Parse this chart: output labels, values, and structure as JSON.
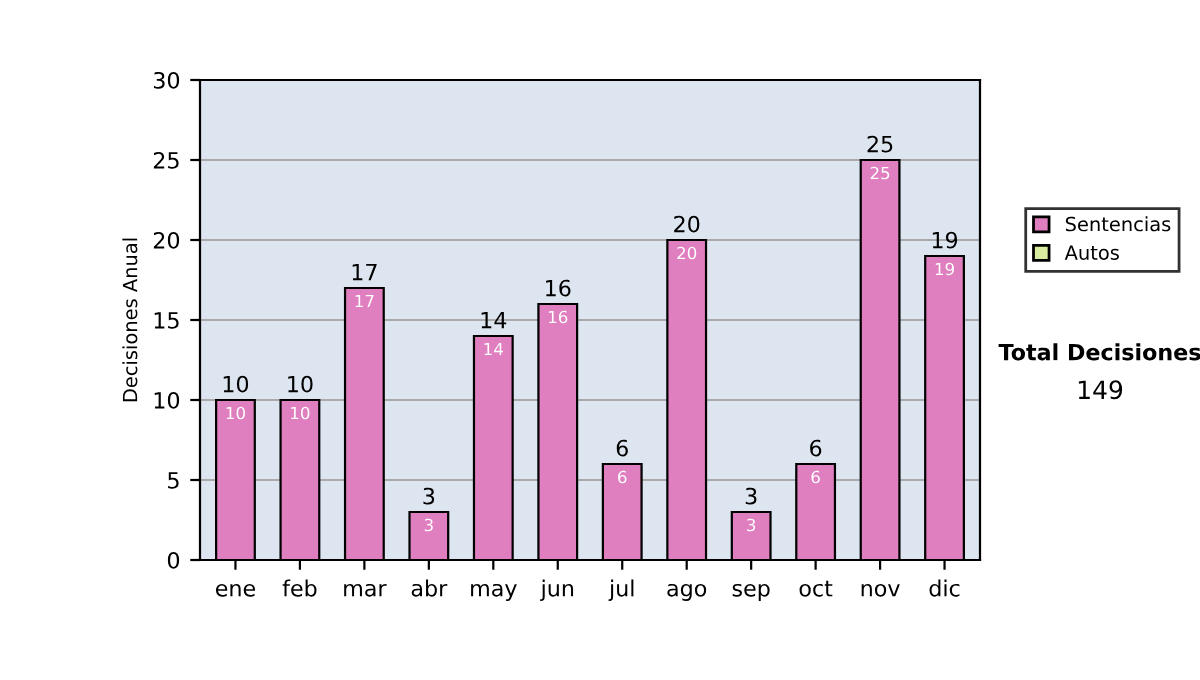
{
  "chart_data": {
    "type": "bar",
    "ylabel": "Decisiones Anual",
    "categories": [
      "ene",
      "feb",
      "mar",
      "abr",
      "may",
      "jun",
      "jul",
      "ago",
      "sep",
      "oct",
      "nov",
      "dic"
    ],
    "series": [
      {
        "name": "Sentencias",
        "color": "#e07fc0",
        "values": [
          10,
          10,
          17,
          3,
          14,
          16,
          6,
          20,
          3,
          6,
          25,
          19
        ],
        "value_labels": [
          "10",
          "10",
          "17",
          "3",
          "14",
          "16",
          "6",
          "20",
          "3",
          "6",
          "25",
          "19"
        ]
      },
      {
        "name": "Autos",
        "color": "#d8eca0",
        "values": [
          0,
          0,
          0,
          0,
          0,
          0,
          0,
          0,
          0,
          0,
          0,
          0
        ]
      }
    ],
    "stacked": true,
    "totals": [
      "10",
      "10",
      "17",
      "3",
      "14",
      "16",
      "6",
      "20",
      "3",
      "6",
      "25",
      "19"
    ],
    "ylim": [
      0,
      30
    ],
    "yticks": [
      0,
      5,
      10,
      15,
      20,
      25,
      30
    ],
    "grid": "y",
    "legend": "right",
    "annotations": [
      "Total Decisiones",
      "149"
    ]
  }
}
